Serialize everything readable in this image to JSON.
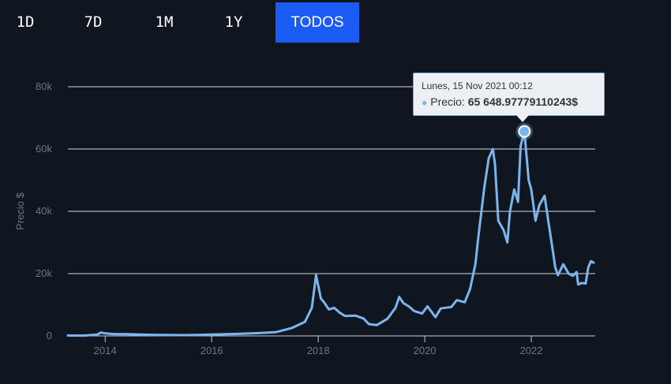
{
  "range_tabs": {
    "items": [
      "1D",
      "7D",
      "1M",
      "1Y",
      "TODOS"
    ],
    "active": "TODOS"
  },
  "tooltip": {
    "date": "Lunes, 15 Nov 2021 00:12",
    "series_label": "Precio:",
    "value": "65 648.97779110243$"
  },
  "colors": {
    "background": "#0f1620",
    "line": "#7cb5ec",
    "active_tab": "#1a5cf5",
    "grid": "#d8d8d8",
    "axis_text": "#6f7680"
  },
  "chart_data": {
    "type": "line",
    "ylabel": "Precio $",
    "xlabel": "",
    "ylim": [
      0,
      80000
    ],
    "xlim": [
      2013.3,
      2023.2
    ],
    "y_ticks": [
      0,
      20000,
      40000,
      60000,
      80000
    ],
    "y_tick_labels": [
      "0",
      "20k",
      "40k",
      "60k",
      "80k"
    ],
    "x_ticks": [
      2014,
      2016,
      2018,
      2020,
      2022
    ],
    "x_tick_labels": [
      "2014",
      "2016",
      "2018",
      "2020",
      "2022"
    ],
    "grid": true,
    "series": [
      {
        "points": [
          [
            2013.3,
            120
          ],
          [
            2013.6,
            100
          ],
          [
            2013.85,
            400
          ],
          [
            2013.92,
            1100
          ],
          [
            2014.0,
            800
          ],
          [
            2014.15,
            600
          ],
          [
            2014.4,
            550
          ],
          [
            2014.8,
            380
          ],
          [
            2015.0,
            300
          ],
          [
            2015.5,
            250
          ],
          [
            2016.0,
            420
          ],
          [
            2016.5,
            650
          ],
          [
            2016.9,
            900
          ],
          [
            2017.2,
            1200
          ],
          [
            2017.5,
            2500
          ],
          [
            2017.75,
            4500
          ],
          [
            2017.88,
            9000
          ],
          [
            2017.96,
            19500
          ],
          [
            2018.05,
            12000
          ],
          [
            2018.1,
            11000
          ],
          [
            2018.2,
            8500
          ],
          [
            2018.3,
            9000
          ],
          [
            2018.4,
            7500
          ],
          [
            2018.5,
            6400
          ],
          [
            2018.7,
            6500
          ],
          [
            2018.85,
            5600
          ],
          [
            2018.95,
            3800
          ],
          [
            2019.1,
            3500
          ],
          [
            2019.3,
            5500
          ],
          [
            2019.45,
            9000
          ],
          [
            2019.52,
            12500
          ],
          [
            2019.6,
            10500
          ],
          [
            2019.7,
            9500
          ],
          [
            2019.8,
            8000
          ],
          [
            2019.95,
            7200
          ],
          [
            2020.05,
            9500
          ],
          [
            2020.2,
            6000
          ],
          [
            2020.3,
            8800
          ],
          [
            2020.5,
            9300
          ],
          [
            2020.6,
            11500
          ],
          [
            2020.75,
            10800
          ],
          [
            2020.85,
            15000
          ],
          [
            2020.95,
            23000
          ],
          [
            2021.0,
            31000
          ],
          [
            2021.05,
            38000
          ],
          [
            2021.12,
            48000
          ],
          [
            2021.2,
            57000
          ],
          [
            2021.28,
            60000
          ],
          [
            2021.32,
            55000
          ],
          [
            2021.38,
            37000
          ],
          [
            2021.48,
            34000
          ],
          [
            2021.55,
            30000
          ],
          [
            2021.6,
            40000
          ],
          [
            2021.68,
            47000
          ],
          [
            2021.75,
            43000
          ],
          [
            2021.8,
            61000
          ],
          [
            2021.87,
            65649
          ],
          [
            2021.95,
            50000
          ],
          [
            2022.0,
            47000
          ],
          [
            2022.08,
            37000
          ],
          [
            2022.15,
            42000
          ],
          [
            2022.25,
            45000
          ],
          [
            2022.3,
            39000
          ],
          [
            2022.38,
            30000
          ],
          [
            2022.45,
            22000
          ],
          [
            2022.5,
            19500
          ],
          [
            2022.6,
            23000
          ],
          [
            2022.7,
            20000
          ],
          [
            2022.78,
            19300
          ],
          [
            2022.85,
            20500
          ],
          [
            2022.88,
            16500
          ],
          [
            2022.95,
            17000
          ],
          [
            2023.02,
            16800
          ],
          [
            2023.07,
            22000
          ],
          [
            2023.12,
            24000
          ],
          [
            2023.17,
            23500
          ]
        ]
      }
    ],
    "highlight_point": [
      2021.87,
      65649
    ]
  }
}
